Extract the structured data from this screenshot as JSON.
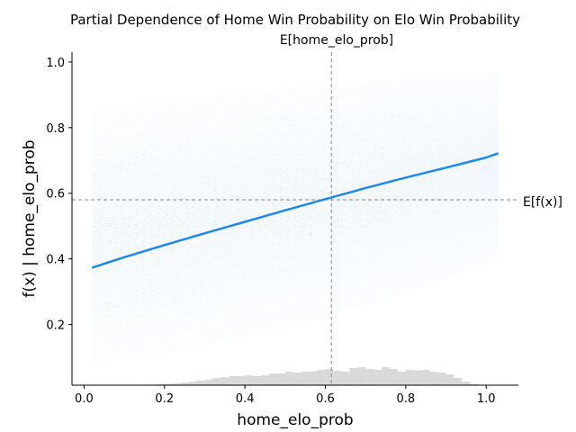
{
  "chart_data": {
    "type": "line",
    "title": "Partial Dependence of Home Win Probability on Elo Win Probability",
    "xlabel": "home_elo_prob",
    "ylabel": "f(x) | home_elo_prob",
    "xlim": [
      -0.03,
      1.08
    ],
    "ylim": [
      0.015,
      1.03
    ],
    "xticks": [
      0.0,
      0.2,
      0.4,
      0.6,
      0.8,
      1.0
    ],
    "xtick_labels": [
      "0.0",
      "0.2",
      "0.4",
      "0.6",
      "0.8",
      "1.0"
    ],
    "yticks": [
      0.2,
      0.4,
      0.6,
      0.8,
      1.0
    ],
    "ytick_labels": [
      "0.2",
      "0.4",
      "0.6",
      "0.8",
      "1.0"
    ],
    "expected_x": {
      "label": "E[home_elo_prob]",
      "value": 0.615
    },
    "expected_fx": {
      "label": "E[f(x)]",
      "value": 0.58
    },
    "pd_line": {
      "x": [
        0.02,
        0.1,
        0.2,
        0.3,
        0.4,
        0.5,
        0.6,
        0.7,
        0.8,
        0.9,
        1.0,
        1.03
      ],
      "y": [
        0.373,
        0.405,
        0.442,
        0.478,
        0.513,
        0.548,
        0.582,
        0.616,
        0.648,
        0.678,
        0.709,
        0.722
      ]
    },
    "ice_band": {
      "x": [
        0.02,
        0.2,
        0.4,
        0.6,
        0.8,
        1.03
      ],
      "low": [
        0.08,
        0.11,
        0.16,
        0.22,
        0.3,
        0.4
      ],
      "high": [
        0.85,
        0.88,
        0.91,
        0.93,
        0.95,
        0.97
      ]
    },
    "histogram": {
      "bin_centers": [
        0.01,
        0.03,
        0.05,
        0.07,
        0.09,
        0.11,
        0.13,
        0.15,
        0.17,
        0.19,
        0.21,
        0.23,
        0.25,
        0.27,
        0.29,
        0.31,
        0.33,
        0.35,
        0.37,
        0.39,
        0.41,
        0.43,
        0.45,
        0.47,
        0.49,
        0.51,
        0.53,
        0.55,
        0.57,
        0.59,
        0.61,
        0.63,
        0.65,
        0.67,
        0.69,
        0.71,
        0.73,
        0.75,
        0.77,
        0.79,
        0.81,
        0.83,
        0.85,
        0.87,
        0.89,
        0.91,
        0.93,
        0.95,
        0.97,
        0.99,
        1.01,
        1.03
      ],
      "relative_heights": [
        0.0,
        0.0,
        0.0,
        0.0,
        0.0,
        0.0,
        0.0,
        0.03,
        0.03,
        0.06,
        0.08,
        0.1,
        0.15,
        0.2,
        0.25,
        0.3,
        0.4,
        0.45,
        0.5,
        0.5,
        0.55,
        0.5,
        0.55,
        0.65,
        0.65,
        0.75,
        0.7,
        0.75,
        0.78,
        0.85,
        0.9,
        0.8,
        0.75,
        0.95,
        1.0,
        0.9,
        0.85,
        1.0,
        0.9,
        0.75,
        0.85,
        0.82,
        0.85,
        0.75,
        0.7,
        0.6,
        0.4,
        0.2,
        0.08,
        0.0,
        0.0,
        0.0
      ],
      "color": "#d9d9d9"
    },
    "colors": {
      "ice_line": "#b7d4ff",
      "pd_line": "#1e88e5",
      "reference": "#888888"
    },
    "grid": false,
    "legend": "none"
  }
}
